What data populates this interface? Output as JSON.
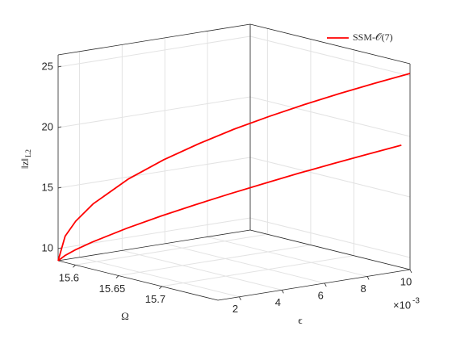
{
  "chart_data": {
    "type": "line3d",
    "xlabel": "Ω",
    "ylabel": "ϵ",
    "zlabel": "‖z‖",
    "zlabel_subscript": "L2",
    "y_multiplier": {
      "base": "×10",
      "exponent": "-3"
    },
    "xlim": [
      15.58,
      15.765
    ],
    "ylim": [
      0.001,
      0.01
    ],
    "zlim": [
      9,
      26
    ],
    "xticks": [
      15.6,
      15.65,
      15.7
    ],
    "yticks": [
      {
        "value": 0.002,
        "label": "2"
      },
      {
        "value": 0.004,
        "label": "4"
      },
      {
        "value": 0.006,
        "label": "6"
      },
      {
        "value": 0.008,
        "label": "8"
      },
      {
        "value": 0.01,
        "label": "10"
      }
    ],
    "zticks": [
      10,
      15,
      20,
      25
    ],
    "grid": true,
    "legend": "top-right",
    "series": [
      {
        "name": "SSM-𝒪(7)",
        "color": "#ff0000",
        "x": [
          15.58,
          15.5837,
          15.5893,
          15.5985,
          15.617,
          15.6355,
          15.654,
          15.6725,
          15.691,
          15.7095,
          15.728,
          15.7465,
          15.765
        ],
        "y": [
          0.001,
          0.00118,
          0.00145,
          0.0019,
          0.0028,
          0.0037,
          0.0046,
          0.0055,
          0.0064,
          0.0073,
          0.0082,
          0.0091,
          0.01
        ],
        "values": [
          9,
          11.04,
          12.31,
          13.78,
          15.9,
          17.56,
          18.96,
          20.23,
          21.36,
          22.41,
          23.39,
          24.32,
          25.2
        ]
      },
      {
        "name": null,
        "color": "#ff0000",
        "x": [
          15.58,
          15.5835,
          15.5888,
          15.5975,
          15.615,
          15.6325,
          15.65,
          15.6675,
          15.685,
          15.7025,
          15.72,
          15.7375,
          15.755
        ],
        "y": [
          0.001,
          0.00118,
          0.00145,
          0.0019,
          0.0028,
          0.0037,
          0.0046,
          0.0055,
          0.0064,
          0.0073,
          0.0082,
          0.0091,
          0.01
        ],
        "values": [
          9,
          9.44,
          9.92,
          10.6,
          11.79,
          12.86,
          13.85,
          14.8,
          15.71,
          16.6,
          17.45,
          18.28,
          19.1
        ]
      }
    ]
  }
}
